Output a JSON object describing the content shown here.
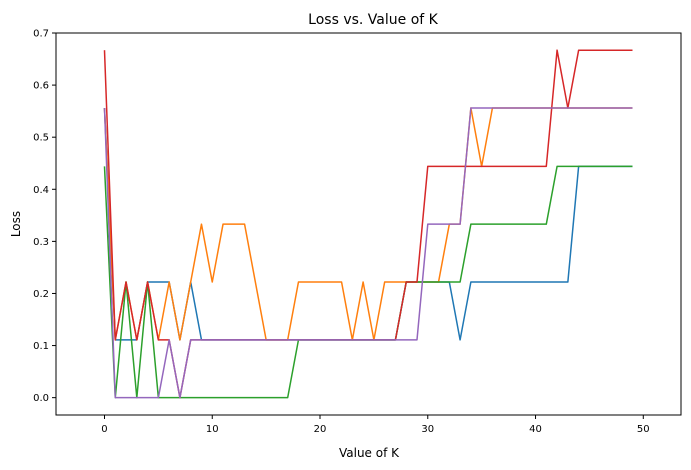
{
  "chart_data": {
    "type": "line",
    "title": "Loss vs. Value of K",
    "xlabel": "Value of K",
    "ylabel": "Loss",
    "xlim": [
      -4.5,
      53.5
    ],
    "ylim": [
      -0.0333,
      0.7
    ],
    "xticks": [
      0,
      10,
      20,
      30,
      40,
      50
    ],
    "yticks": [
      0.0,
      0.1,
      0.2,
      0.3,
      0.4,
      0.5,
      0.6,
      0.7
    ],
    "grid": false,
    "x": [
      0,
      1,
      2,
      3,
      4,
      5,
      6,
      7,
      8,
      9,
      10,
      11,
      12,
      13,
      14,
      15,
      16,
      17,
      18,
      19,
      20,
      21,
      22,
      23,
      24,
      25,
      26,
      27,
      28,
      29,
      30,
      31,
      32,
      33,
      34,
      35,
      36,
      37,
      38,
      39,
      40,
      41,
      42,
      43,
      44,
      45,
      46,
      47,
      48,
      49
    ],
    "series": [
      {
        "color": "#1f77b4",
        "values": [
          0.556,
          0.111,
          0.111,
          0.111,
          0.222,
          0.222,
          0.222,
          0.111,
          0.222,
          0.111,
          0.111,
          0.111,
          0.111,
          0.111,
          0.111,
          0.111,
          0.111,
          0.111,
          0.111,
          0.111,
          0.111,
          0.111,
          0.111,
          0.111,
          0.111,
          0.111,
          0.111,
          0.111,
          0.222,
          0.222,
          0.222,
          0.222,
          0.222,
          0.111,
          0.222,
          0.222,
          0.222,
          0.222,
          0.222,
          0.222,
          0.222,
          0.222,
          0.222,
          0.222,
          0.444,
          0.444,
          0.444,
          0.444,
          0.444,
          0.444
        ]
      },
      {
        "color": "#ff7f0e",
        "values": [
          0.556,
          0.111,
          0.222,
          0.111,
          0.222,
          0.111,
          0.222,
          0.111,
          0.222,
          0.333,
          0.222,
          0.333,
          0.333,
          0.333,
          0.222,
          0.111,
          0.111,
          0.111,
          0.222,
          0.222,
          0.222,
          0.222,
          0.222,
          0.111,
          0.222,
          0.111,
          0.222,
          0.222,
          0.222,
          0.222,
          0.222,
          0.222,
          0.333,
          0.333,
          0.556,
          0.444,
          0.556,
          0.556,
          0.556,
          0.556,
          0.556,
          0.556,
          0.556,
          0.556,
          0.556,
          0.556,
          0.556,
          0.556,
          0.556,
          0.556
        ]
      },
      {
        "color": "#2ca02c",
        "values": [
          0.444,
          0.0,
          0.222,
          0.0,
          0.222,
          0.0,
          0.0,
          0.0,
          0.0,
          0.0,
          0.0,
          0.0,
          0.0,
          0.0,
          0.0,
          0.0,
          0.0,
          0.0,
          0.111,
          0.111,
          0.111,
          0.111,
          0.111,
          0.111,
          0.111,
          0.111,
          0.111,
          0.111,
          0.222,
          0.222,
          0.222,
          0.222,
          0.222,
          0.222,
          0.333,
          0.333,
          0.333,
          0.333,
          0.333,
          0.333,
          0.333,
          0.333,
          0.444,
          0.444,
          0.444,
          0.444,
          0.444,
          0.444,
          0.444,
          0.444
        ]
      },
      {
        "color": "#d62728",
        "values": [
          0.667,
          0.111,
          0.222,
          0.111,
          0.222,
          0.111,
          0.111,
          0.0,
          0.111,
          0.111,
          0.111,
          0.111,
          0.111,
          0.111,
          0.111,
          0.111,
          0.111,
          0.111,
          0.111,
          0.111,
          0.111,
          0.111,
          0.111,
          0.111,
          0.111,
          0.111,
          0.111,
          0.111,
          0.222,
          0.222,
          0.444,
          0.444,
          0.444,
          0.444,
          0.444,
          0.444,
          0.444,
          0.444,
          0.444,
          0.444,
          0.444,
          0.444,
          0.667,
          0.556,
          0.667,
          0.667,
          0.667,
          0.667,
          0.667,
          0.667
        ]
      },
      {
        "color": "#9467bd",
        "values": [
          0.556,
          0.0,
          0.0,
          0.0,
          0.0,
          0.0,
          0.111,
          0.0,
          0.111,
          0.111,
          0.111,
          0.111,
          0.111,
          0.111,
          0.111,
          0.111,
          0.111,
          0.111,
          0.111,
          0.111,
          0.111,
          0.111,
          0.111,
          0.111,
          0.111,
          0.111,
          0.111,
          0.111,
          0.111,
          0.111,
          0.333,
          0.333,
          0.333,
          0.333,
          0.556,
          0.556,
          0.556,
          0.556,
          0.556,
          0.556,
          0.556,
          0.556,
          0.556,
          0.556,
          0.556,
          0.556,
          0.556,
          0.556,
          0.556,
          0.556
        ]
      }
    ]
  }
}
